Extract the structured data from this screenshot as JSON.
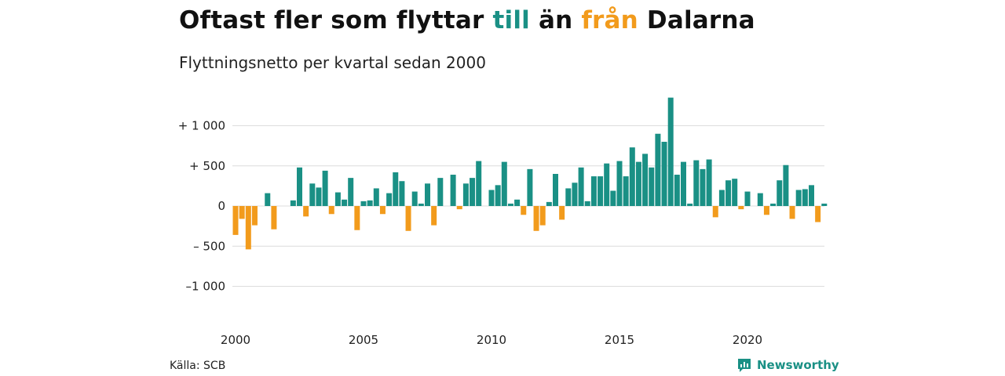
{
  "title": {
    "part1": "Oftast fler som flyttar ",
    "to": "till",
    "mid": " än ",
    "from": "från",
    "end": " Dalarna"
  },
  "subtitle": "Flyttningsnetto per kvartal sedan 2000",
  "source": "Källa: SCB",
  "brand": "Newsworthy",
  "colors": {
    "positive": "#1a9085",
    "negative": "#f29b1c"
  },
  "chart_data": {
    "type": "bar",
    "ylim": [
      -1250,
      1300
    ],
    "yticks": [
      {
        "value": 1000,
        "label": "+ 1 000"
      },
      {
        "value": 500,
        "label": "+   500"
      },
      {
        "value": 0,
        "label": "0"
      },
      {
        "value": -500,
        "label": "–  500"
      },
      {
        "value": -1000,
        "label": "–1 000"
      }
    ],
    "xticks": [
      {
        "year": 2000,
        "label": "2000"
      },
      {
        "year": 2005,
        "label": "2005"
      },
      {
        "year": 2010,
        "label": "2010"
      },
      {
        "year": 2015,
        "label": "2015"
      },
      {
        "year": 2020,
        "label": "2020"
      }
    ],
    "start_year": 2000,
    "start_quarter": 1,
    "values": [
      -360,
      -160,
      -540,
      -240,
      0,
      160,
      -290,
      0,
      0,
      70,
      480,
      -130,
      280,
      230,
      440,
      -100,
      170,
      80,
      350,
      -300,
      60,
      70,
      220,
      -100,
      160,
      420,
      310,
      -310,
      180,
      30,
      280,
      -240,
      350,
      0,
      390,
      -40,
      280,
      350,
      560,
      0,
      200,
      260,
      550,
      30,
      80,
      -110,
      460,
      -310,
      -240,
      50,
      400,
      -170,
      220,
      290,
      480,
      60,
      370,
      370,
      530,
      190,
      560,
      370,
      730,
      550,
      650,
      480,
      900,
      800,
      1350,
      390,
      550,
      30,
      570,
      460,
      580,
      -140,
      200,
      320,
      340,
      -40,
      180,
      0,
      160,
      -110,
      30,
      320,
      510,
      -160,
      200,
      210,
      260,
      -200,
      30
    ]
  }
}
